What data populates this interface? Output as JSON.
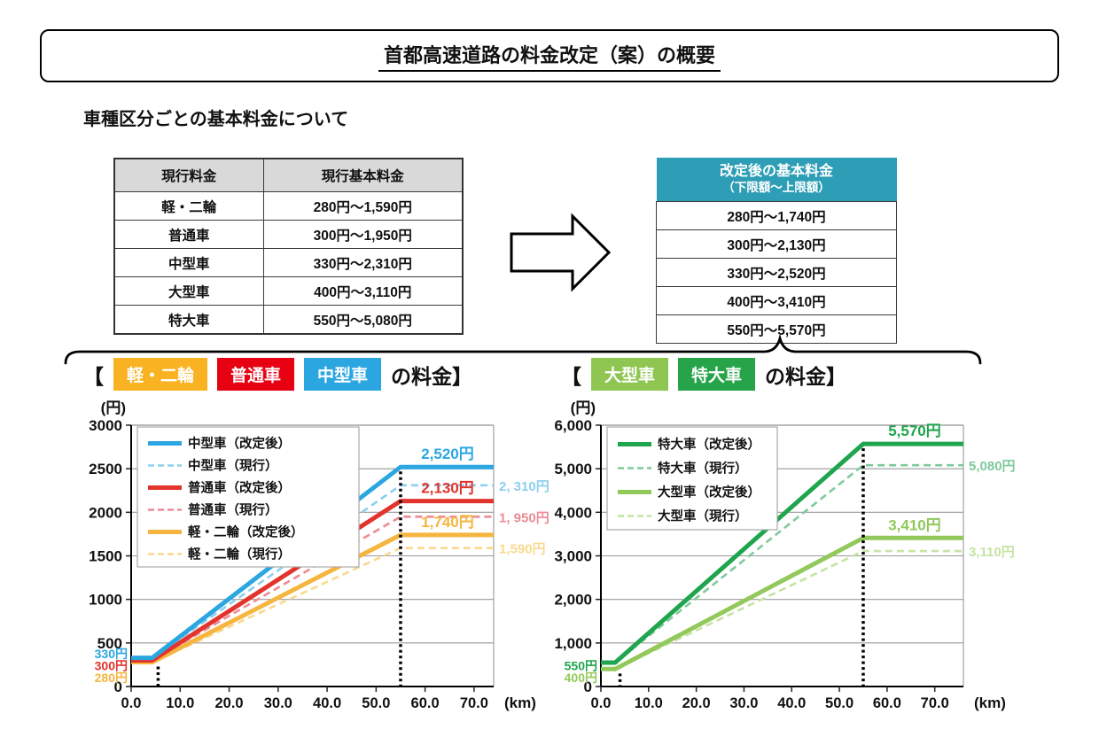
{
  "page": {
    "title": "首都高速道路の料金改定（案）の概要",
    "subtitle": "車種区分ごとの基本料金について"
  },
  "colors": {
    "revised_header_teal": "#2D9EB5",
    "table_header_gray": "#D9D9D9"
  },
  "current_table": {
    "headers": [
      "現行料金",
      "現行基本料金"
    ],
    "rows": [
      {
        "category": "軽・二輪",
        "range": "280円～1,590円"
      },
      {
        "category": "普通車",
        "range": "300円～1,950円"
      },
      {
        "category": "中型車",
        "range": "330円～2,310円"
      },
      {
        "category": "大型車",
        "range": "400円～3,110円"
      },
      {
        "category": "特大車",
        "range": "550円～5,080円"
      }
    ]
  },
  "revised_table": {
    "header_line1": "改定後の基本料金",
    "header_line2": "（下限額～上限額）",
    "rows": [
      "280円～1,740円",
      "300円～2,130円",
      "330円～2,520円",
      "400円～3,410円",
      "550円～5,570円"
    ]
  },
  "chart_headings": {
    "open_bracket": "【",
    "suffix": "の料金】",
    "left_badges": [
      {
        "label": "軽・二輪",
        "color": "#F9B322"
      },
      {
        "label": "普通車",
        "color": "#E60012"
      },
      {
        "label": "中型車",
        "color": "#2CA6E0"
      }
    ],
    "right_badges": [
      {
        "label": "大型車",
        "color": "#8FC652"
      },
      {
        "label": "特大車",
        "color": "#27A449"
      }
    ]
  },
  "chart_data": [
    {
      "type": "line",
      "title": "軽・二輪 / 普通車 / 中型車 の料金",
      "y_unit": "(円)",
      "x_unit": "(km)",
      "ylim": [
        0,
        3000
      ],
      "yticks": [
        0,
        500,
        1000,
        1500,
        2000,
        2500,
        3000
      ],
      "ytick_labels": [
        "0",
        "500",
        "1000",
        "1500",
        "2000",
        "2500",
        "3000"
      ],
      "xticks": [
        0,
        10,
        20,
        30,
        40,
        50,
        60,
        70
      ],
      "xtick_labels": [
        "0.0",
        "10.0",
        "20.0",
        "30.0",
        "40.0",
        "50.0",
        "60.0",
        "70.0"
      ],
      "xmax_km": 74,
      "flat_until_km": 4.3,
      "cap_km": 55,
      "grid": true,
      "legend_position": "top-left",
      "dotted_guides": [
        {
          "km": 5.5,
          "top_fare": 280
        },
        {
          "km": 55,
          "top_fare": 2520
        }
      ],
      "series": [
        {
          "name": "中型車（改定後）",
          "dash": false,
          "color": "#2CA6E0",
          "min_fare": 330,
          "max_fare": 2520,
          "max_label": "2,520円",
          "label_side": "above"
        },
        {
          "name": "中型車（現行）",
          "dash": true,
          "color": "#8CCFEE",
          "min_fare": 330,
          "max_fare": 2310,
          "max_label": "2, 310円",
          "label_side": "right"
        },
        {
          "name": "普通車（改定後）",
          "dash": false,
          "color": "#E3332D",
          "min_fare": 300,
          "max_fare": 2130,
          "max_label": "2,130円",
          "label_side": "above"
        },
        {
          "name": "普通車（現行）",
          "dash": true,
          "color": "#EC8B95",
          "min_fare": 300,
          "max_fare": 1950,
          "max_label": "1, 950円",
          "label_side": "right"
        },
        {
          "name": "軽・二輪（改定後）",
          "dash": false,
          "color": "#F5B53F",
          "min_fare": 280,
          "max_fare": 1740,
          "max_label": "1,740円",
          "label_side": "above"
        },
        {
          "name": "軽・二輪（現行）",
          "dash": true,
          "color": "#F9D98F",
          "min_fare": 280,
          "max_fare": 1590,
          "max_label": "1,590円",
          "label_side": "right"
        }
      ],
      "start_labels": [
        {
          "text": "330円",
          "color": "#2CA6E0"
        },
        {
          "text": "300円",
          "color": "#E3332D"
        },
        {
          "text": "280円",
          "color": "#F5B53F"
        }
      ]
    },
    {
      "type": "line",
      "title": "大型車 / 特大車 の料金",
      "y_unit": "(円)",
      "x_unit": "(km)",
      "ylim": [
        0,
        6000
      ],
      "yticks": [
        0,
        1000,
        2000,
        3000,
        4000,
        5000,
        6000
      ],
      "ytick_labels": [
        "0",
        "1,000",
        "2,000",
        "3,000",
        "4,000",
        "5,000",
        "6,000"
      ],
      "xticks": [
        0,
        10,
        20,
        30,
        40,
        50,
        60,
        70
      ],
      "xtick_labels": [
        "0.0",
        "10.0",
        "20.0",
        "30.0",
        "40.0",
        "50.0",
        "60.0",
        "70.0"
      ],
      "xmax_km": 76,
      "flat_until_km": 3.0,
      "cap_km": 55,
      "grid": true,
      "legend_position": "top-left",
      "dotted_guides": [
        {
          "km": 4.0,
          "top_fare": 400
        },
        {
          "km": 55,
          "top_fare": 5570
        }
      ],
      "series": [
        {
          "name": "特大車（改定後）",
          "dash": false,
          "color": "#1FA54E",
          "min_fare": 550,
          "max_fare": 5570,
          "max_label": "5,570円",
          "label_side": "above"
        },
        {
          "name": "特大車（現行）",
          "dash": true,
          "color": "#7FCA9C",
          "min_fare": 550,
          "max_fare": 5080,
          "max_label": "5,080円",
          "label_side": "right"
        },
        {
          "name": "大型車（改定後）",
          "dash": false,
          "color": "#93C95B",
          "min_fare": 400,
          "max_fare": 3410,
          "max_label": "3,410円",
          "label_side": "above"
        },
        {
          "name": "大型車（現行）",
          "dash": true,
          "color": "#C6E3A3",
          "min_fare": 400,
          "max_fare": 3110,
          "max_label": "3,110円",
          "label_side": "right"
        }
      ],
      "start_labels": [
        {
          "text": "550円",
          "color": "#1FA54E"
        },
        {
          "text": "400円",
          "color": "#93C95B"
        }
      ]
    }
  ]
}
